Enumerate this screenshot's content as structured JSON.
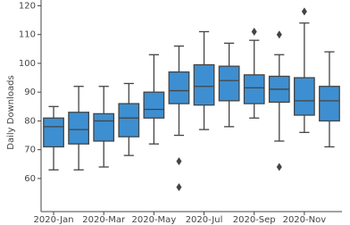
{
  "chart_data": {
    "type": "box",
    "y_label": "Daily Downloads",
    "categories": [
      "2020-Jan",
      null,
      "2020-Mar",
      null,
      "2020-May",
      null,
      "2020-Jul",
      null,
      "2020-Sep",
      null,
      "2020-Nov",
      null
    ],
    "color": "#3d8fd1",
    "boxes": [
      {
        "whislo": 63,
        "q1": 71,
        "med": 78,
        "q3": 81,
        "whishi": 85,
        "fliers": []
      },
      {
        "whislo": 63,
        "q1": 72,
        "med": 77,
        "q3": 83,
        "whishi": 92,
        "fliers": []
      },
      {
        "whislo": 64,
        "q1": 73,
        "med": 80,
        "q3": 82.5,
        "whishi": 92,
        "fliers": []
      },
      {
        "whislo": 68,
        "q1": 74.5,
        "med": 81,
        "q3": 86,
        "whishi": 93,
        "fliers": []
      },
      {
        "whislo": 72,
        "q1": 81,
        "med": 84,
        "q3": 90,
        "whishi": 103,
        "fliers": []
      },
      {
        "whislo": 75,
        "q1": 86,
        "med": 90.5,
        "q3": 97,
        "whishi": 106,
        "fliers": [
          66,
          57
        ]
      },
      {
        "whislo": 77,
        "q1": 85.5,
        "med": 92,
        "q3": 99.5,
        "whishi": 111,
        "fliers": []
      },
      {
        "whislo": 78,
        "q1": 87,
        "med": 94,
        "q3": 99,
        "whishi": 107,
        "fliers": []
      },
      {
        "whislo": 81,
        "q1": 86,
        "med": 91.5,
        "q3": 96,
        "whishi": 108,
        "fliers": [
          111
        ]
      },
      {
        "whislo": 73,
        "q1": 86.5,
        "med": 91,
        "q3": 95.5,
        "whishi": 103,
        "fliers": [
          110,
          64
        ]
      },
      {
        "whislo": 76,
        "q1": 82,
        "med": 87,
        "q3": 95,
        "whishi": 114,
        "fliers": [
          118
        ]
      },
      {
        "whislo": 71,
        "q1": 80,
        "med": 87,
        "q3": 92,
        "whishi": 104,
        "fliers": []
      }
    ],
    "ylim": [
      48.5,
      122
    ],
    "yticks": [
      60,
      70,
      80,
      90,
      100,
      110,
      120
    ]
  }
}
